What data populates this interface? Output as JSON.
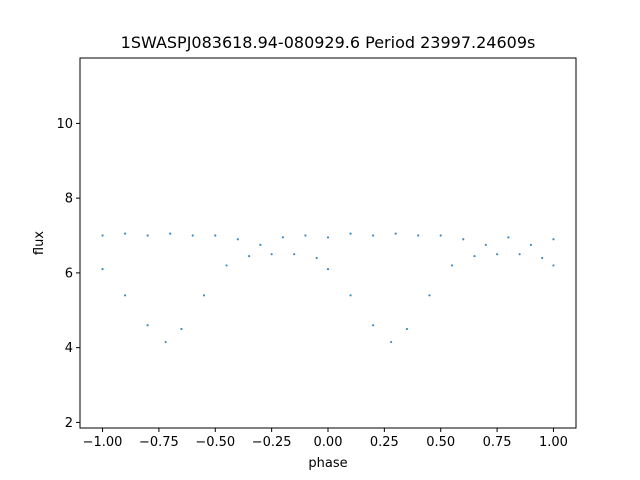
{
  "chart_data": {
    "type": "scatter",
    "title": "1SWASPJ083618.94-080929.6 Period 23997.24609s",
    "xlabel": "phase",
    "ylabel": "flux",
    "xlim": [
      -1.1,
      1.1
    ],
    "ylim": [
      1.85,
      11.75
    ],
    "xticks": [
      -1.0,
      -0.75,
      -0.5,
      -0.25,
      0.0,
      0.25,
      0.5,
      0.75,
      1.0
    ],
    "xtick_labels": [
      "−1.00",
      "−0.75",
      "−0.50",
      "−0.25",
      "0.00",
      "0.25",
      "0.50",
      "0.75",
      "1.00"
    ],
    "yticks": [
      2,
      4,
      6,
      8,
      10
    ],
    "ytick_labels": [
      "2",
      "4",
      "6",
      "8",
      "10"
    ],
    "grid": false,
    "legend": "none",
    "marker_color": "#1f77b4",
    "series": [
      {
        "description_points": [
          [
            -1.0,
            7.0
          ],
          [
            -0.9,
            7.05
          ],
          [
            -0.8,
            7.0
          ],
          [
            -0.7,
            7.05
          ],
          [
            -0.6,
            7.0
          ],
          [
            -0.5,
            7.0
          ],
          [
            -0.4,
            6.9
          ],
          [
            -0.3,
            6.75
          ],
          [
            -0.2,
            6.95
          ],
          [
            -0.1,
            7.0
          ],
          [
            0.0,
            6.95
          ],
          [
            0.1,
            7.05
          ],
          [
            0.2,
            7.0
          ],
          [
            0.3,
            7.05
          ],
          [
            0.4,
            7.0
          ],
          [
            0.5,
            7.0
          ],
          [
            0.6,
            6.9
          ],
          [
            0.7,
            6.75
          ],
          [
            0.8,
            6.95
          ],
          [
            0.9,
            6.75
          ],
          [
            1.0,
            6.9
          ]
        ]
      },
      {
        "description_points": [
          [
            -1.0,
            6.1
          ],
          [
            -0.9,
            5.4
          ],
          [
            -0.8,
            4.6
          ],
          [
            -0.72,
            4.15
          ],
          [
            -0.65,
            4.5
          ],
          [
            -0.55,
            5.4
          ],
          [
            -0.45,
            6.2
          ],
          [
            -0.35,
            6.45
          ],
          [
            -0.25,
            6.5
          ],
          [
            -0.15,
            6.5
          ],
          [
            -0.05,
            6.4
          ],
          [
            0.0,
            6.1
          ],
          [
            0.1,
            5.4
          ],
          [
            0.2,
            4.6
          ],
          [
            0.28,
            4.15
          ],
          [
            0.35,
            4.5
          ],
          [
            0.45,
            5.4
          ],
          [
            0.55,
            6.2
          ],
          [
            0.65,
            6.45
          ],
          [
            0.75,
            6.5
          ],
          [
            0.85,
            6.5
          ],
          [
            0.95,
            6.4
          ],
          [
            1.0,
            6.2
          ]
        ]
      }
    ]
  }
}
